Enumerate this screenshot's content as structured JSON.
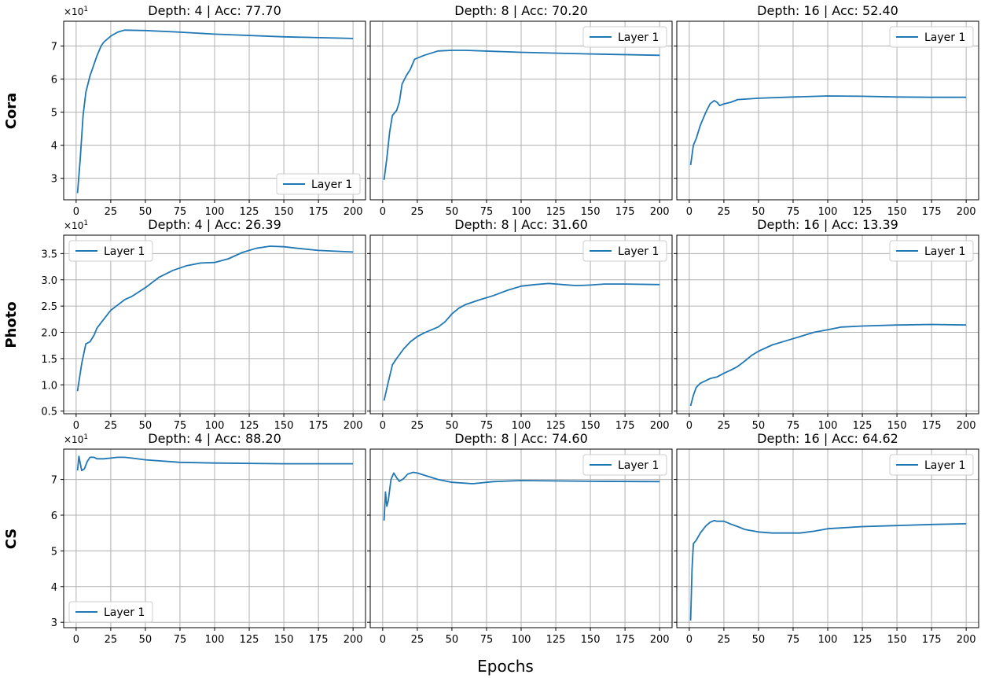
{
  "figure": {
    "xlabel": "Epochs",
    "row_labels": [
      "Cora",
      "Photo",
      "CS"
    ],
    "line_color": "#1f77b4",
    "grid_color": "#b0b0b0",
    "y_scale_label": "×10",
    "y_scale_exp": "1"
  },
  "chart_data": [
    {
      "type": "line",
      "row": 0,
      "col": 0,
      "title": "Depth: 4 | Acc: 77.70",
      "xlim": [
        -9,
        209
      ],
      "ylim": [
        2.35,
        7.75
      ],
      "xticks": [
        0,
        25,
        50,
        75,
        100,
        125,
        150,
        175,
        200
      ],
      "yticks": [
        3,
        4,
        5,
        6,
        7
      ],
      "show_yticks": true,
      "show_scale": true,
      "legend": "lower-right",
      "grid": true,
      "series": [
        {
          "name": "Layer 1",
          "points": [
            [
              1,
              2.55
            ],
            [
              3,
              3.6
            ],
            [
              5,
              4.9
            ],
            [
              7,
              5.6
            ],
            [
              10,
              6.1
            ],
            [
              15,
              6.7
            ],
            [
              18,
              7.0
            ],
            [
              20,
              7.12
            ],
            [
              25,
              7.3
            ],
            [
              30,
              7.42
            ],
            [
              35,
              7.48
            ],
            [
              50,
              7.47
            ],
            [
              75,
              7.42
            ],
            [
              100,
              7.36
            ],
            [
              150,
              7.28
            ],
            [
              200,
              7.23
            ]
          ]
        }
      ]
    },
    {
      "type": "line",
      "row": 0,
      "col": 1,
      "title": "Depth: 8 | Acc: 70.20",
      "xlim": [
        -9,
        209
      ],
      "ylim": [
        2.35,
        7.75
      ],
      "xticks": [
        0,
        25,
        50,
        75,
        100,
        125,
        150,
        175,
        200
      ],
      "yticks": [
        3,
        4,
        5,
        6,
        7
      ],
      "show_yticks": false,
      "show_scale": false,
      "legend": "upper-right",
      "grid": true,
      "series": [
        {
          "name": "Layer 1",
          "points": [
            [
              1,
              2.95
            ],
            [
              3,
              3.6
            ],
            [
              5,
              4.4
            ],
            [
              7,
              4.9
            ],
            [
              10,
              5.05
            ],
            [
              12,
              5.3
            ],
            [
              14,
              5.85
            ],
            [
              17,
              6.1
            ],
            [
              20,
              6.3
            ],
            [
              23,
              6.6
            ],
            [
              30,
              6.72
            ],
            [
              40,
              6.85
            ],
            [
              50,
              6.87
            ],
            [
              60,
              6.87
            ],
            [
              100,
              6.81
            ],
            [
              150,
              6.76
            ],
            [
              200,
              6.72
            ]
          ]
        }
      ]
    },
    {
      "type": "line",
      "row": 0,
      "col": 2,
      "title": "Depth: 16 | Acc: 52.40",
      "xlim": [
        -9,
        209
      ],
      "ylim": [
        2.35,
        7.75
      ],
      "xticks": [
        0,
        25,
        50,
        75,
        100,
        125,
        150,
        175,
        200
      ],
      "yticks": [
        3,
        4,
        5,
        6,
        7
      ],
      "show_yticks": false,
      "show_scale": false,
      "legend": "upper-right",
      "grid": true,
      "series": [
        {
          "name": "Layer 1",
          "points": [
            [
              1,
              3.4
            ],
            [
              3,
              4.0
            ],
            [
              5,
              4.2
            ],
            [
              8,
              4.6
            ],
            [
              12,
              5.0
            ],
            [
              15,
              5.25
            ],
            [
              18,
              5.35
            ],
            [
              20,
              5.3
            ],
            [
              22,
              5.2
            ],
            [
              25,
              5.25
            ],
            [
              30,
              5.3
            ],
            [
              35,
              5.38
            ],
            [
              50,
              5.42
            ],
            [
              75,
              5.46
            ],
            [
              100,
              5.49
            ],
            [
              125,
              5.48
            ],
            [
              150,
              5.46
            ],
            [
              175,
              5.45
            ],
            [
              200,
              5.45
            ]
          ]
        }
      ]
    },
    {
      "type": "line",
      "row": 1,
      "col": 0,
      "title": "Depth: 4 | Acc: 26.39",
      "xlim": [
        -9,
        209
      ],
      "ylim": [
        0.45,
        3.85
      ],
      "xticks": [
        0,
        25,
        50,
        75,
        100,
        125,
        150,
        175,
        200
      ],
      "yticks": [
        0.5,
        1.0,
        1.5,
        2.0,
        2.5,
        3.0,
        3.5
      ],
      "show_yticks": true,
      "show_scale": true,
      "legend": "upper-left",
      "grid": true,
      "series": [
        {
          "name": "Layer 1",
          "points": [
            [
              1,
              0.88
            ],
            [
              4,
              1.4
            ],
            [
              7,
              1.78
            ],
            [
              10,
              1.82
            ],
            [
              13,
              1.95
            ],
            [
              15,
              2.08
            ],
            [
              20,
              2.25
            ],
            [
              25,
              2.42
            ],
            [
              30,
              2.52
            ],
            [
              35,
              2.62
            ],
            [
              40,
              2.68
            ],
            [
              50,
              2.85
            ],
            [
              60,
              3.05
            ],
            [
              70,
              3.18
            ],
            [
              80,
              3.27
            ],
            [
              90,
              3.32
            ],
            [
              100,
              3.33
            ],
            [
              110,
              3.4
            ],
            [
              120,
              3.52
            ],
            [
              130,
              3.6
            ],
            [
              140,
              3.64
            ],
            [
              150,
              3.63
            ],
            [
              160,
              3.6
            ],
            [
              175,
              3.56
            ],
            [
              200,
              3.53
            ]
          ]
        }
      ]
    },
    {
      "type": "line",
      "row": 1,
      "col": 1,
      "title": "Depth: 8 | Acc: 31.60",
      "xlim": [
        -9,
        209
      ],
      "ylim": [
        0.45,
        3.85
      ],
      "xticks": [
        0,
        25,
        50,
        75,
        100,
        125,
        150,
        175,
        200
      ],
      "yticks": [
        0.5,
        1.0,
        1.5,
        2.0,
        2.5,
        3.0,
        3.5
      ],
      "show_yticks": false,
      "show_scale": false,
      "legend": "upper-right",
      "grid": true,
      "series": [
        {
          "name": "Layer 1",
          "points": [
            [
              1,
              0.7
            ],
            [
              4,
              1.05
            ],
            [
              7,
              1.38
            ],
            [
              10,
              1.5
            ],
            [
              15,
              1.68
            ],
            [
              20,
              1.82
            ],
            [
              25,
              1.92
            ],
            [
              30,
              1.99
            ],
            [
              40,
              2.1
            ],
            [
              45,
              2.2
            ],
            [
              50,
              2.35
            ],
            [
              55,
              2.46
            ],
            [
              60,
              2.53
            ],
            [
              70,
              2.62
            ],
            [
              80,
              2.7
            ],
            [
              90,
              2.8
            ],
            [
              100,
              2.88
            ],
            [
              110,
              2.91
            ],
            [
              120,
              2.93
            ],
            [
              130,
              2.91
            ],
            [
              140,
              2.89
            ],
            [
              150,
              2.9
            ],
            [
              160,
              2.92
            ],
            [
              175,
              2.92
            ],
            [
              200,
              2.91
            ]
          ]
        }
      ]
    },
    {
      "type": "line",
      "row": 1,
      "col": 2,
      "title": "Depth: 16 | Acc: 13.39",
      "xlim": [
        -9,
        209
      ],
      "ylim": [
        0.45,
        3.85
      ],
      "xticks": [
        0,
        25,
        50,
        75,
        100,
        125,
        150,
        175,
        200
      ],
      "yticks": [
        0.5,
        1.0,
        1.5,
        2.0,
        2.5,
        3.0,
        3.5
      ],
      "show_yticks": false,
      "show_scale": false,
      "legend": "upper-right",
      "grid": true,
      "series": [
        {
          "name": "Layer 1",
          "points": [
            [
              1,
              0.6
            ],
            [
              3,
              0.8
            ],
            [
              5,
              0.95
            ],
            [
              8,
              1.03
            ],
            [
              12,
              1.08
            ],
            [
              15,
              1.12
            ],
            [
              20,
              1.15
            ],
            [
              25,
              1.22
            ],
            [
              30,
              1.28
            ],
            [
              35,
              1.35
            ],
            [
              40,
              1.45
            ],
            [
              45,
              1.56
            ],
            [
              50,
              1.64
            ],
            [
              60,
              1.76
            ],
            [
              70,
              1.84
            ],
            [
              80,
              1.92
            ],
            [
              90,
              2.0
            ],
            [
              100,
              2.05
            ],
            [
              110,
              2.1
            ],
            [
              125,
              2.12
            ],
            [
              150,
              2.14
            ],
            [
              175,
              2.15
            ],
            [
              200,
              2.14
            ]
          ]
        }
      ]
    },
    {
      "type": "line",
      "row": 2,
      "col": 0,
      "title": "Depth: 4 | Acc: 88.20",
      "xlim": [
        -9,
        209
      ],
      "ylim": [
        2.85,
        7.85
      ],
      "xticks": [
        0,
        25,
        50,
        75,
        100,
        125,
        150,
        175,
        200
      ],
      "yticks": [
        3,
        4,
        5,
        6,
        7
      ],
      "show_yticks": true,
      "show_scale": true,
      "legend": "lower-left",
      "grid": true,
      "series": [
        {
          "name": "Layer 1",
          "points": [
            [
              1,
              7.25
            ],
            [
              2,
              7.65
            ],
            [
              3,
              7.45
            ],
            [
              4,
              7.25
            ],
            [
              6,
              7.3
            ],
            [
              8,
              7.5
            ],
            [
              10,
              7.62
            ],
            [
              13,
              7.62
            ],
            [
              15,
              7.58
            ],
            [
              20,
              7.58
            ],
            [
              25,
              7.6
            ],
            [
              30,
              7.62
            ],
            [
              35,
              7.62
            ],
            [
              40,
              7.6
            ],
            [
              50,
              7.55
            ],
            [
              75,
              7.48
            ],
            [
              100,
              7.46
            ],
            [
              150,
              7.44
            ],
            [
              200,
              7.44
            ]
          ]
        }
      ]
    },
    {
      "type": "line",
      "row": 2,
      "col": 1,
      "title": "Depth: 8 | Acc: 74.60",
      "xlim": [
        -9,
        209
      ],
      "ylim": [
        2.85,
        7.85
      ],
      "xticks": [
        0,
        25,
        50,
        75,
        100,
        125,
        150,
        175,
        200
      ],
      "yticks": [
        3,
        4,
        5,
        6,
        7
      ],
      "show_yticks": false,
      "show_scale": false,
      "legend": "upper-right",
      "grid": true,
      "series": [
        {
          "name": "Layer 1",
          "points": [
            [
              1,
              5.85
            ],
            [
              2,
              6.65
            ],
            [
              3,
              6.25
            ],
            [
              4,
              6.4
            ],
            [
              6,
              7.0
            ],
            [
              8,
              7.18
            ],
            [
              10,
              7.05
            ],
            [
              12,
              6.95
            ],
            [
              15,
              7.02
            ],
            [
              18,
              7.15
            ],
            [
              22,
              7.2
            ],
            [
              25,
              7.18
            ],
            [
              30,
              7.12
            ],
            [
              40,
              7.0
            ],
            [
              50,
              6.92
            ],
            [
              65,
              6.88
            ],
            [
              80,
              6.94
            ],
            [
              100,
              6.97
            ],
            [
              150,
              6.95
            ],
            [
              200,
              6.94
            ]
          ]
        }
      ]
    },
    {
      "type": "line",
      "row": 2,
      "col": 2,
      "title": "Depth: 16 | Acc: 64.62",
      "xlim": [
        -9,
        209
      ],
      "ylim": [
        2.85,
        7.85
      ],
      "xticks": [
        0,
        25,
        50,
        75,
        100,
        125,
        150,
        175,
        200
      ],
      "yticks": [
        3,
        4,
        5,
        6,
        7
      ],
      "show_yticks": false,
      "show_scale": false,
      "legend": "upper-right",
      "grid": true,
      "series": [
        {
          "name": "Layer 1",
          "points": [
            [
              1,
              3.05
            ],
            [
              2,
              4.5
            ],
            [
              3,
              5.2
            ],
            [
              5,
              5.3
            ],
            [
              8,
              5.5
            ],
            [
              12,
              5.7
            ],
            [
              15,
              5.8
            ],
            [
              18,
              5.85
            ],
            [
              20,
              5.83
            ],
            [
              25,
              5.83
            ],
            [
              30,
              5.75
            ],
            [
              35,
              5.68
            ],
            [
              40,
              5.6
            ],
            [
              50,
              5.53
            ],
            [
              60,
              5.5
            ],
            [
              80,
              5.5
            ],
            [
              90,
              5.55
            ],
            [
              100,
              5.62
            ],
            [
              125,
              5.68
            ],
            [
              150,
              5.71
            ],
            [
              175,
              5.74
            ],
            [
              200,
              5.76
            ]
          ]
        }
      ]
    }
  ]
}
